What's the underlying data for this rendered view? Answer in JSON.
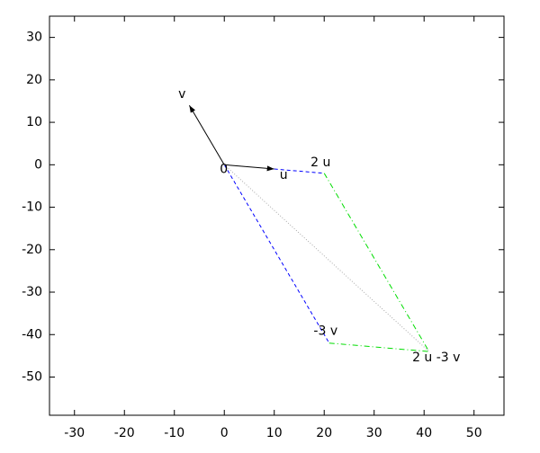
{
  "chart_data": {
    "type": "vector",
    "xlim": [
      -35,
      56
    ],
    "ylim": [
      -59,
      35
    ],
    "xticks": [
      -30,
      -20,
      -10,
      0,
      10,
      20,
      30,
      40,
      50
    ],
    "yticks": [
      -50,
      -40,
      -30,
      -20,
      -10,
      0,
      10,
      20,
      30
    ],
    "series": [
      {
        "color": "#000000",
        "style": "solid",
        "arrow": true,
        "x": [
          0,
          10
        ],
        "y": [
          0,
          -1
        ]
      },
      {
        "color": "#000000",
        "style": "solid",
        "arrow": true,
        "x": [
          0,
          -7
        ],
        "y": [
          0,
          14
        ]
      },
      {
        "color": "#0000ff",
        "style": "dashed",
        "arrow": false,
        "x": [
          10,
          20
        ],
        "y": [
          -1,
          -2
        ]
      },
      {
        "color": "#0000ff",
        "style": "dashed",
        "arrow": false,
        "x": [
          0,
          21
        ],
        "y": [
          0,
          -42
        ]
      },
      {
        "color": "#00dd00",
        "style": "dashdot",
        "arrow": false,
        "x": [
          20,
          41
        ],
        "y": [
          -2,
          -44
        ]
      },
      {
        "color": "#00dd00",
        "style": "dashdot",
        "arrow": false,
        "x": [
          21,
          41
        ],
        "y": [
          -42,
          -44
        ]
      },
      {
        "color": "#aaaaaa",
        "style": "dotted",
        "arrow": false,
        "x": [
          0,
          41
        ],
        "y": [
          0,
          -44
        ]
      }
    ],
    "annotations": [
      {
        "text": "0",
        "x": 0,
        "y": 0
      },
      {
        "text": "u",
        "x": 10,
        "y": -1
      },
      {
        "text": "2 u",
        "x": 20,
        "y": -2
      },
      {
        "text": "v",
        "x": -7,
        "y": 14
      },
      {
        "text": "-3 v",
        "x": 21,
        "y": -42
      },
      {
        "text": "2 u -3 v",
        "x": 41,
        "y": -44
      }
    ]
  }
}
